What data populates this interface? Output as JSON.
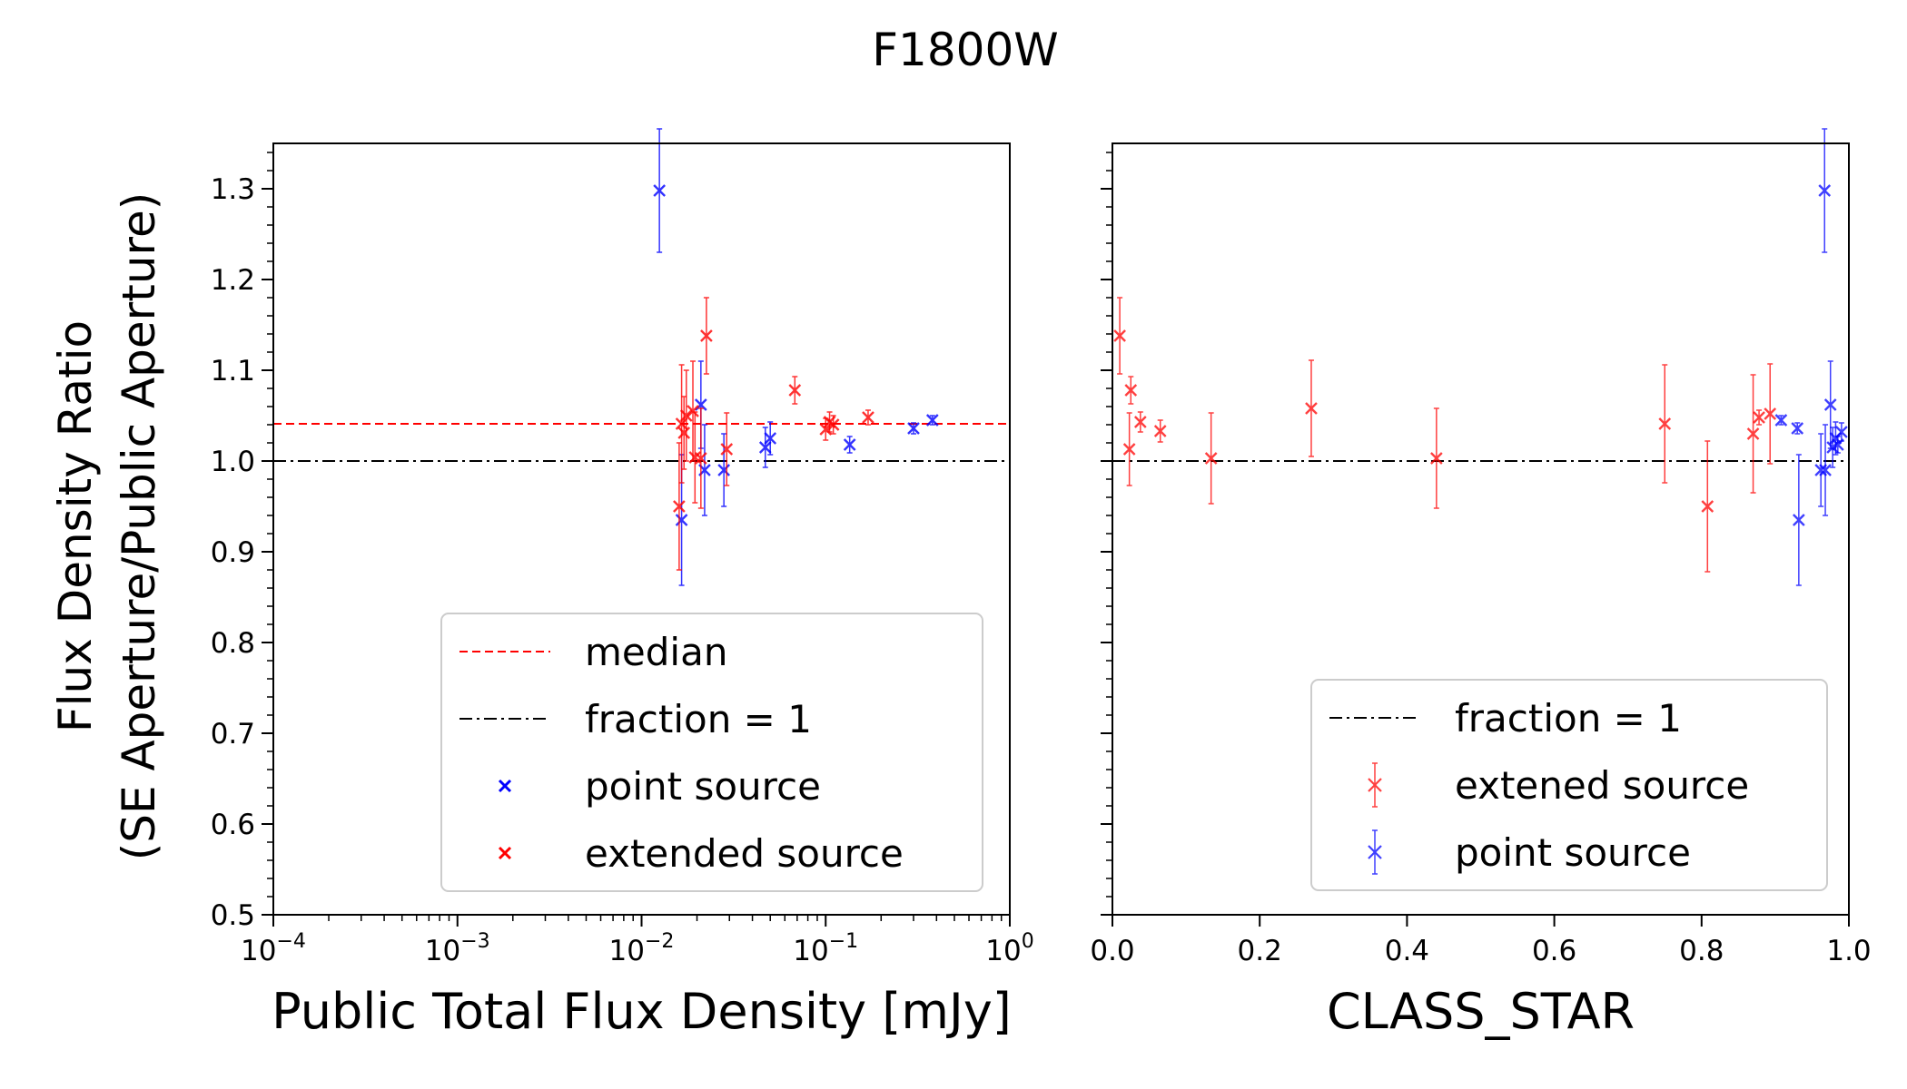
{
  "figure": {
    "title": "F1800W"
  },
  "shared_ylabel": [
    "Flux Density Ratio",
    "(SE Aperture/Public Aperture)"
  ],
  "colors": {
    "point": "#0000ff",
    "extended": "#ff0000",
    "median": "#ff0000",
    "unity": "#000000"
  },
  "chart_data": [
    {
      "type": "scatter",
      "xscale": "log",
      "xlabel": "Public Total Flux Density [mJy]",
      "ylabel": "Flux Density Ratio (SE Aperture/Public Aperture)",
      "xlim": [
        0.0001,
        1
      ],
      "ylim": [
        0.5,
        1.35
      ],
      "x_ticks": [
        {
          "value": 0.0001,
          "base": "10",
          "exp": "−4"
        },
        {
          "value": 0.001,
          "base": "10",
          "exp": "−3"
        },
        {
          "value": 0.01,
          "base": "10",
          "exp": "−2"
        },
        {
          "value": 0.1,
          "base": "10",
          "exp": "−1"
        },
        {
          "value": 1,
          "base": "10",
          "exp": "0"
        }
      ],
      "y_ticks": [
        {
          "value": 0.5,
          "label": "0.5"
        },
        {
          "value": 0.6,
          "label": "0.6"
        },
        {
          "value": 0.7,
          "label": "0.7"
        },
        {
          "value": 0.8,
          "label": "0.8"
        },
        {
          "value": 0.9,
          "label": "0.9"
        },
        {
          "value": 1.0,
          "label": "1.0"
        },
        {
          "value": 1.1,
          "label": "1.1"
        },
        {
          "value": 1.2,
          "label": "1.2"
        },
        {
          "value": 1.3,
          "label": "1.3"
        }
      ],
      "lines": [
        {
          "name": "median",
          "y": 1.041,
          "style": "dashed",
          "color": "#ff0000"
        },
        {
          "name": "fraction = 1",
          "y": 1.0,
          "style": "dashdot",
          "color": "#000000"
        }
      ],
      "legend": {
        "position": "lower-right",
        "entries": [
          {
            "label": "median",
            "kind": "dashed",
            "color": "#ff0000"
          },
          {
            "label": "fraction = 1",
            "kind": "dashdot",
            "color": "#000000"
          },
          {
            "label": "point source",
            "kind": "marker",
            "color": "#0000ff"
          },
          {
            "label": "extended source",
            "kind": "marker",
            "color": "#ff0000"
          }
        ]
      },
      "series": [
        {
          "name": "point source",
          "color": "#0000ff",
          "points": [
            {
              "x": 0.0125,
              "y": 1.298,
              "err": 0.068
            },
            {
              "x": 0.0165,
              "y": 0.935,
              "err": 0.072
            },
            {
              "x": 0.021,
              "y": 1.062,
              "err": 0.048
            },
            {
              "x": 0.022,
              "y": 0.99,
              "err": 0.05
            },
            {
              "x": 0.028,
              "y": 0.99,
              "err": 0.04
            },
            {
              "x": 0.047,
              "y": 1.015,
              "err": 0.022
            },
            {
              "x": 0.05,
              "y": 1.025,
              "err": 0.018
            },
            {
              "x": 0.135,
              "y": 1.018,
              "err": 0.009
            },
            {
              "x": 0.3,
              "y": 1.036,
              "err": 0.006
            },
            {
              "x": 0.38,
              "y": 1.045,
              "err": 0.005
            }
          ]
        },
        {
          "name": "extended source",
          "color": "#ff0000",
          "points": [
            {
              "x": 0.016,
              "y": 0.95,
              "err": 0.07
            },
            {
              "x": 0.0165,
              "y": 1.041,
              "err": 0.065
            },
            {
              "x": 0.017,
              "y": 1.031,
              "err": 0.04
            },
            {
              "x": 0.0175,
              "y": 1.05,
              "err": 0.05
            },
            {
              "x": 0.019,
              "y": 1.055,
              "err": 0.055
            },
            {
              "x": 0.0195,
              "y": 1.004,
              "err": 0.05
            },
            {
              "x": 0.021,
              "y": 1.003,
              "err": 0.055
            },
            {
              "x": 0.0225,
              "y": 1.138,
              "err": 0.042
            },
            {
              "x": 0.029,
              "y": 1.013,
              "err": 0.04
            },
            {
              "x": 0.068,
              "y": 1.078,
              "err": 0.015
            },
            {
              "x": 0.1,
              "y": 1.035,
              "err": 0.012
            },
            {
              "x": 0.105,
              "y": 1.043,
              "err": 0.011
            },
            {
              "x": 0.11,
              "y": 1.04,
              "err": 0.01
            },
            {
              "x": 0.17,
              "y": 1.048,
              "err": 0.008
            }
          ]
        }
      ]
    },
    {
      "type": "scatter",
      "xscale": "linear",
      "xlabel": "CLASS_STAR",
      "ylabel": "",
      "xlim": [
        0,
        1
      ],
      "ylim": [
        0.5,
        1.35
      ],
      "x_ticks": [
        {
          "value": 0,
          "label": "0.0"
        },
        {
          "value": 0.2,
          "label": "0.2"
        },
        {
          "value": 0.4,
          "label": "0.4"
        },
        {
          "value": 0.6,
          "label": "0.6"
        },
        {
          "value": 0.8,
          "label": "0.8"
        },
        {
          "value": 1,
          "label": "1.0"
        }
      ],
      "lines": [
        {
          "name": "fraction = 1",
          "y": 1.0,
          "style": "dashdot",
          "color": "#000000"
        }
      ],
      "legend": {
        "position": "lower-right",
        "entries": [
          {
            "label": "fraction = 1",
            "kind": "dashdot",
            "color": "#000000"
          },
          {
            "label": "extened source",
            "kind": "errorbar",
            "color": "#ff0000"
          },
          {
            "label": "point source",
            "kind": "errorbar",
            "color": "#0000ff"
          }
        ]
      },
      "series": [
        {
          "name": "extened source",
          "color": "#ff0000",
          "points": [
            {
              "x": 0.01,
              "y": 1.138,
              "err": 0.042
            },
            {
              "x": 0.023,
              "y": 1.013,
              "err": 0.04
            },
            {
              "x": 0.025,
              "y": 1.078,
              "err": 0.015
            },
            {
              "x": 0.038,
              "y": 1.043,
              "err": 0.011
            },
            {
              "x": 0.065,
              "y": 1.033,
              "err": 0.012
            },
            {
              "x": 0.134,
              "y": 1.003,
              "err": 0.05
            },
            {
              "x": 0.27,
              "y": 1.058,
              "err": 0.053
            },
            {
              "x": 0.44,
              "y": 1.003,
              "err": 0.055
            },
            {
              "x": 0.75,
              "y": 1.041,
              "err": 0.065
            },
            {
              "x": 0.808,
              "y": 0.95,
              "err": 0.072
            },
            {
              "x": 0.87,
              "y": 1.03,
              "err": 0.065
            },
            {
              "x": 0.878,
              "y": 1.048,
              "err": 0.008
            },
            {
              "x": 0.893,
              "y": 1.052,
              "err": 0.055
            }
          ]
        },
        {
          "name": "point source",
          "color": "#0000ff",
          "points": [
            {
              "x": 0.908,
              "y": 1.045,
              "err": 0.005
            },
            {
              "x": 0.93,
              "y": 1.036,
              "err": 0.006
            },
            {
              "x": 0.932,
              "y": 0.935,
              "err": 0.072
            },
            {
              "x": 0.962,
              "y": 0.99,
              "err": 0.04
            },
            {
              "x": 0.967,
              "y": 1.298,
              "err": 0.068
            },
            {
              "x": 0.968,
              "y": 0.99,
              "err": 0.05
            },
            {
              "x": 0.975,
              "y": 1.062,
              "err": 0.048
            },
            {
              "x": 0.978,
              "y": 1.015,
              "err": 0.022
            },
            {
              "x": 0.982,
              "y": 1.025,
              "err": 0.018
            },
            {
              "x": 0.985,
              "y": 1.018,
              "err": 0.009
            },
            {
              "x": 0.99,
              "y": 1.032,
              "err": 0.01
            }
          ]
        }
      ]
    }
  ]
}
